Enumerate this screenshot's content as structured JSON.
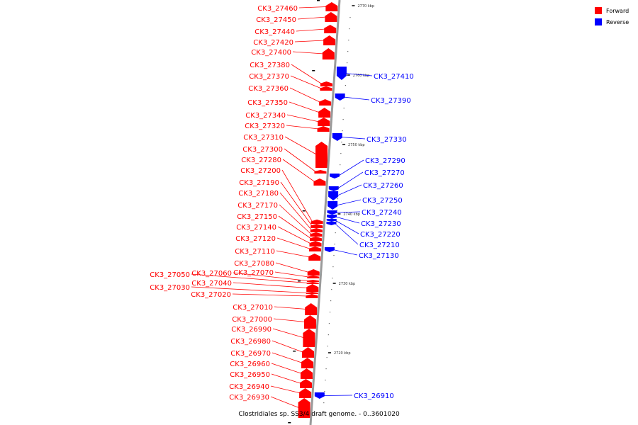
{
  "caption": "Clostridiales sp. SS3/4 draft genome. - 0..3601020",
  "legend": [
    {
      "label": "Forward",
      "color": "#ff0000"
    },
    {
      "label": "Reverse",
      "color": "#0000ff"
    }
  ],
  "colors": {
    "forward": "#ff0000",
    "reverse": "#0000ff",
    "backbone": "#999999"
  },
  "ticks": [
    "2770 kbp",
    "2760 kbp",
    "2750 kbp",
    "2740 kbp",
    "2730 kbp",
    "2720 kbp"
  ],
  "forward_genes": [
    "CK3_27460",
    "CK3_27450",
    "CK3_27440",
    "CK3_27420",
    "CK3_27400",
    "CK3_27380",
    "CK3_27370",
    "CK3_27360",
    "CK3_27350",
    "CK3_27340",
    "CK3_27320",
    "CK3_27310",
    "CK3_27300",
    "CK3_27280",
    "CK3_27200",
    "CK3_27190",
    "CK3_27180",
    "CK3_27170",
    "CK3_27150",
    "CK3_27140",
    "CK3_27120",
    "CK3_27110",
    "CK3_27080",
    "CK3_27070",
    "CK3_27060",
    "CK3_27050",
    "CK3_27040",
    "CK3_27030",
    "CK3_27020",
    "CK3_27010",
    "CK3_27000",
    "CK3_26990",
    "CK3_26980",
    "CK3_26970",
    "CK3_26960",
    "CK3_26950",
    "CK3_26940",
    "CK3_26930"
  ],
  "reverse_genes": [
    "CK3_27410",
    "CK3_27390",
    "CK3_27330",
    "CK3_27290",
    "CK3_27270",
    "CK3_27260",
    "CK3_27250",
    "CK3_27240",
    "CK3_27230",
    "CK3_27220",
    "CK3_27210",
    "CK3_27130",
    "CK3_26910"
  ]
}
